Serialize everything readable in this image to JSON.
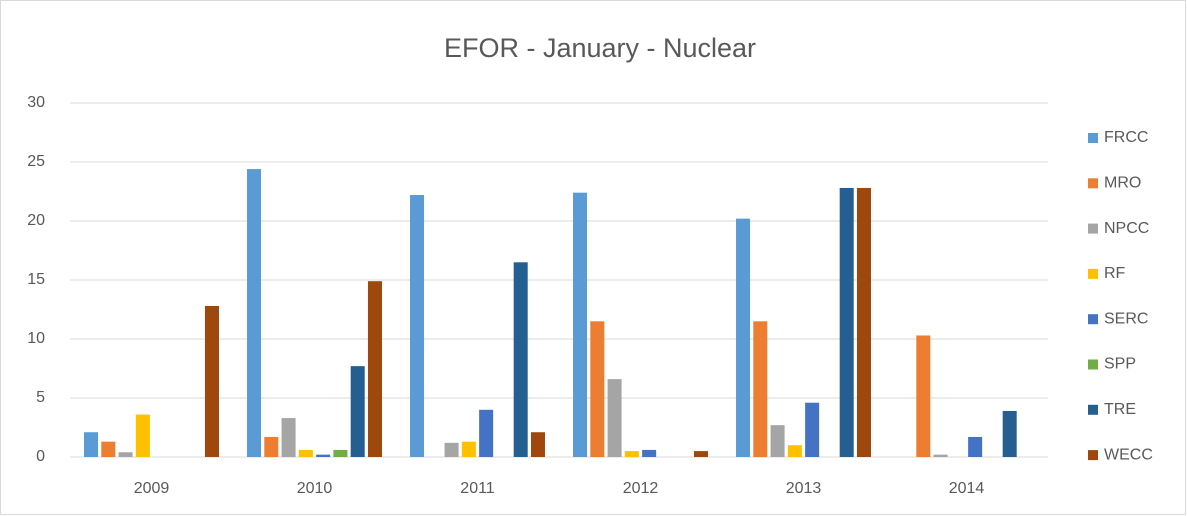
{
  "chart_data": {
    "type": "bar",
    "title": "EFOR - January - Nuclear",
    "categories": [
      "2009",
      "2010",
      "2011",
      "2012",
      "2013",
      "2014"
    ],
    "series": [
      {
        "name": "FRCC",
        "color": "#5b9bd5",
        "values": [
          2.1,
          24.4,
          22.2,
          22.4,
          20.2,
          0
        ]
      },
      {
        "name": "MRO",
        "color": "#ed7d31",
        "values": [
          1.3,
          1.7,
          0,
          11.5,
          11.5,
          10.3
        ]
      },
      {
        "name": "NPCC",
        "color": "#a5a5a5",
        "values": [
          0.4,
          3.3,
          1.2,
          6.6,
          2.7,
          0.2
        ]
      },
      {
        "name": "RF",
        "color": "#ffc000",
        "values": [
          3.6,
          0.6,
          1.3,
          0.5,
          1.0,
          0
        ]
      },
      {
        "name": "SERC",
        "color": "#4472c4",
        "values": [
          0,
          0.2,
          4.0,
          0.6,
          4.6,
          1.7
        ]
      },
      {
        "name": "SPP",
        "color": "#70ad47",
        "values": [
          0,
          0.6,
          0,
          0,
          0,
          0
        ]
      },
      {
        "name": "TRE",
        "color": "#255e91",
        "values": [
          0,
          7.7,
          16.5,
          0,
          22.8,
          3.9
        ]
      },
      {
        "name": "WECC",
        "color": "#9e480e",
        "values": [
          12.8,
          14.9,
          2.1,
          0.5,
          22.8,
          0
        ]
      }
    ],
    "ylim": [
      0,
      30
    ],
    "yticks": [
      0,
      5,
      10,
      15,
      20,
      25,
      30
    ],
    "grid": true,
    "legend": "right"
  }
}
